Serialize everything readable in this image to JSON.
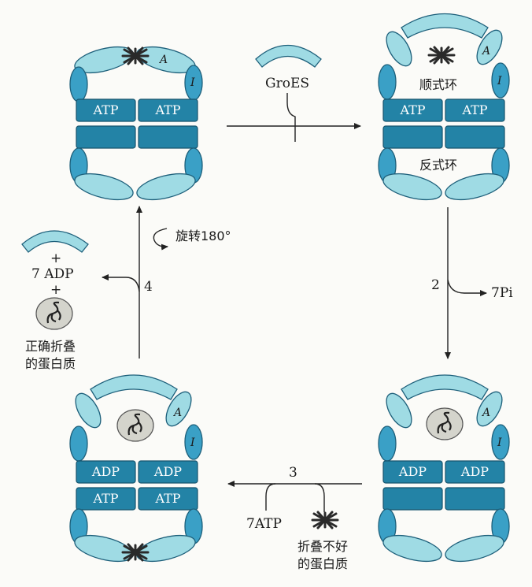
{
  "labels": {
    "groes": "GroES",
    "cis_ring": "顺式环",
    "trans_ring": "反式环",
    "step_2": "2",
    "pi_released": "7Pi",
    "step_3": "3",
    "atp_bound": "7ATP",
    "misfolded_line1": "折叠不好",
    "misfolded_line2": "的蛋白质",
    "step_4": "4",
    "rotate": "旋转180°",
    "plus_1": "+",
    "adp_released": "7 ADP",
    "plus_2": "+",
    "folded_line1": "正确折叠",
    "folded_line2": "的蛋白质",
    "domain_a": "A",
    "domain_i": "I"
  },
  "boxes": {
    "atp": "ATP",
    "adp": "ADP"
  },
  "colors": {
    "light_subunit": "#9fdbe4",
    "dark_box": "#2383a6",
    "dark_side": "#3aa0c6",
    "outline": "#1d5f7a",
    "gray_protein": "#d4d4cc"
  }
}
